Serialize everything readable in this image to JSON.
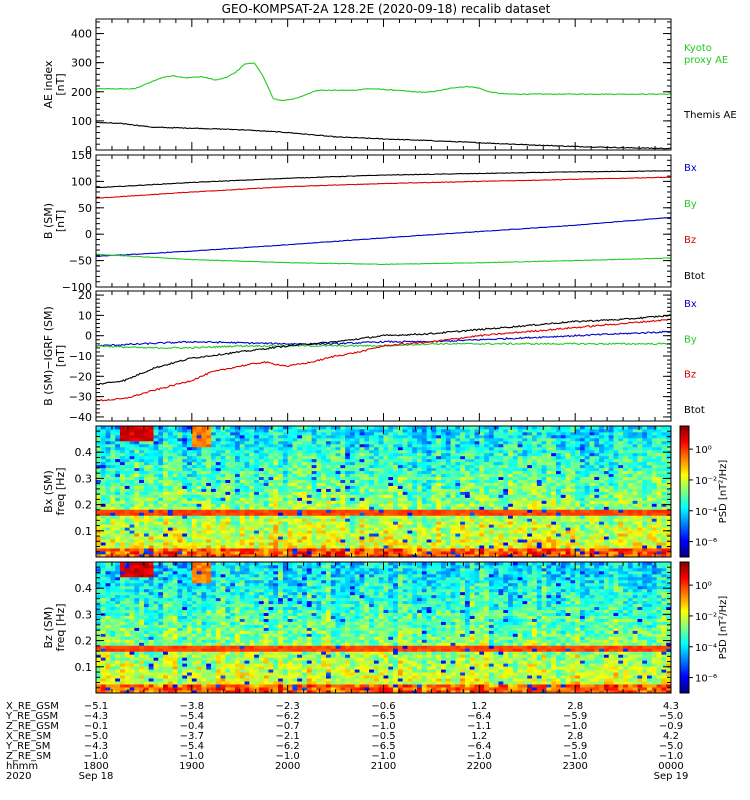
{
  "title": "GEO-KOMPSAT-2A 128.2E (2020-09-18) recalib dataset",
  "colors": {
    "black": "#000000",
    "blue": "#0000cc",
    "green": "#22cc22",
    "red": "#dd0000"
  },
  "chart_data": [
    {
      "id": "ae",
      "type": "line",
      "ylabel_lines": [
        "AE index",
        "[nT]"
      ],
      "ylim": [
        0,
        450
      ],
      "yticks": [
        "0",
        "100",
        "200",
        "300",
        "400"
      ],
      "ytick_values": [
        0,
        100,
        200,
        300,
        400
      ],
      "x_hours": [
        18,
        19,
        20,
        21,
        22,
        23,
        24
      ],
      "series": [
        {
          "name": "Kyoto proxy AE",
          "legend_lines": [
            "Kyoto",
            "proxy AE"
          ],
          "color": "#22cc22",
          "x": [
            18.0,
            18.4,
            18.55,
            18.7,
            18.8,
            18.95,
            19.1,
            19.25,
            19.35,
            19.45,
            19.55,
            19.65,
            19.75,
            19.85,
            19.95,
            20.1,
            20.3,
            20.5,
            20.7,
            20.8,
            20.9,
            21.0,
            21.15,
            21.3,
            21.45,
            21.6,
            21.75,
            21.9,
            22.0,
            22.1,
            22.2,
            22.3,
            22.5,
            23.0,
            23.5,
            24.0
          ],
          "y": [
            210,
            210,
            230,
            250,
            255,
            248,
            252,
            240,
            248,
            265,
            295,
            300,
            250,
            175,
            170,
            178,
            205,
            205,
            205,
            210,
            210,
            208,
            205,
            200,
            198,
            205,
            215,
            218,
            212,
            200,
            195,
            192,
            192,
            192,
            192,
            192
          ]
        },
        {
          "name": "Themis AE",
          "legend_lines": [
            "Themis AE"
          ],
          "color": "#000000",
          "x": [
            18.0,
            18.3,
            18.6,
            19.0,
            19.5,
            20.0,
            20.5,
            21.0,
            21.5,
            22.0,
            22.5,
            23.0,
            23.5,
            24.0
          ],
          "y": [
            95,
            90,
            78,
            75,
            70,
            60,
            45,
            38,
            32,
            25,
            18,
            12,
            8,
            5
          ]
        }
      ]
    },
    {
      "id": "bsm",
      "type": "line",
      "ylabel_lines": [
        "B (SM)",
        "[nT]"
      ],
      "ylim": [
        -100,
        150
      ],
      "yticks": [
        "−100",
        "−50",
        "0",
        "50",
        "100",
        "150"
      ],
      "ytick_values": [
        -100,
        -50,
        0,
        50,
        100,
        150
      ],
      "x_hours": [
        18,
        19,
        20,
        21,
        22,
        23,
        24
      ],
      "series": [
        {
          "name": "Bx",
          "color": "#0000cc",
          "x": [
            18,
            19,
            20,
            21,
            22,
            23,
            24
          ],
          "y": [
            -42,
            -32,
            -20,
            -7,
            5,
            17,
            32
          ]
        },
        {
          "name": "By",
          "color": "#22cc22",
          "x": [
            18,
            19,
            20,
            21,
            22,
            23,
            24
          ],
          "y": [
            -38,
            -48,
            -54,
            -57,
            -54,
            -50,
            -45
          ]
        },
        {
          "name": "Bz",
          "color": "#dd0000",
          "x": [
            18,
            19,
            20,
            21,
            22,
            23,
            24
          ],
          "y": [
            68,
            80,
            90,
            96,
            100,
            104,
            108
          ]
        },
        {
          "name": "Btot",
          "color": "#000000",
          "x": [
            18,
            19,
            20,
            21,
            22,
            23,
            24
          ],
          "y": [
            88,
            98,
            106,
            112,
            115,
            118,
            120
          ]
        }
      ]
    },
    {
      "id": "dbsm",
      "type": "line",
      "ylabel_lines": [
        "B (SM)−IGRF (SM)",
        "[nT]"
      ],
      "ylim": [
        -42,
        22
      ],
      "yticks": [
        "−40",
        "−30",
        "−20",
        "−10",
        "0",
        "10",
        "20"
      ],
      "ytick_values": [
        -40,
        -30,
        -20,
        -10,
        0,
        10,
        20
      ],
      "x_hours": [
        18,
        19,
        20,
        21,
        22,
        23,
        24
      ],
      "series": [
        {
          "name": "Bx",
          "color": "#0000cc",
          "x": [
            18,
            18.5,
            19,
            19.5,
            20,
            20.5,
            21,
            21.5,
            22,
            22.5,
            23,
            23.5,
            24
          ],
          "y": [
            -5,
            -4,
            -3,
            -3.5,
            -4,
            -4,
            -3,
            -3,
            -2,
            -1,
            0,
            1,
            2
          ]
        },
        {
          "name": "By",
          "color": "#22cc22",
          "x": [
            18,
            18.5,
            19,
            19.5,
            20,
            20.5,
            21,
            21.5,
            22,
            22.5,
            23,
            23.5,
            24
          ],
          "y": [
            -5,
            -6,
            -6,
            -5,
            -5,
            -5,
            -5,
            -4,
            -4,
            -4,
            -4,
            -4,
            -4
          ]
        },
        {
          "name": "Bz",
          "color": "#dd0000",
          "x": [
            18,
            18.3,
            18.6,
            19.0,
            19.2,
            19.5,
            19.75,
            20.0,
            20.25,
            20.5,
            20.75,
            21.0,
            21.5,
            22.0,
            22.5,
            23.0,
            23.5,
            24.0
          ],
          "y": [
            -32,
            -31,
            -27,
            -22,
            -18,
            -15,
            -13,
            -15,
            -13,
            -10,
            -8,
            -5,
            -3,
            0,
            2,
            4,
            6,
            8
          ]
        },
        {
          "name": "Btot",
          "color": "#000000",
          "x": [
            18,
            18.3,
            18.6,
            19.0,
            19.5,
            20.0,
            20.5,
            21.0,
            21.5,
            22.0,
            22.5,
            23.0,
            23.5,
            24.0
          ],
          "y": [
            -24,
            -22,
            -16,
            -11,
            -8,
            -5,
            -3,
            0,
            1,
            3,
            5,
            7,
            8,
            10
          ]
        }
      ]
    },
    {
      "id": "bx-spec",
      "type": "heatmap",
      "ylabel_lines": [
        "Bx (SM)",
        "freq [Hz]"
      ],
      "ylim": [
        0,
        0.5
      ],
      "yticks": [
        "0.1",
        "0.2",
        "0.3",
        "0.4"
      ],
      "ytick_values": [
        0.1,
        0.2,
        0.3,
        0.4
      ],
      "colorbar_label": "PSD [nT²/Hz]",
      "colorbar_ticks": [
        "10⁰",
        "10⁻²",
        "10⁻⁴",
        "10⁻⁶"
      ],
      "colorbar_tick_values": [
        0,
        -2,
        -4,
        -6
      ],
      "colorbar_range": [
        -7,
        1.5
      ],
      "features": {
        "line_freq": 0.17,
        "burst_hours": [
          18.5,
          19.1
        ]
      }
    },
    {
      "id": "bz-spec",
      "type": "heatmap",
      "ylabel_lines": [
        "Bz (SM)",
        "freq [Hz]"
      ],
      "ylim": [
        0,
        0.5
      ],
      "yticks": [
        "0.1",
        "0.2",
        "0.3",
        "0.4"
      ],
      "ytick_values": [
        0.1,
        0.2,
        0.3,
        0.4
      ],
      "colorbar_label": "PSD [nT²/Hz]",
      "colorbar_ticks": [
        "10⁰",
        "10⁻²",
        "10⁻⁴",
        "10⁻⁶"
      ],
      "colorbar_tick_values": [
        0,
        -2,
        -4,
        -6
      ],
      "colorbar_range": [
        -7,
        1.5
      ],
      "features": {
        "line_freq": 0.17,
        "burst_hours": [
          18.5,
          19.1
        ]
      }
    }
  ],
  "ephemeris": {
    "row_labels": [
      "X_RE_GSM",
      "Y_RE_GSM",
      "Z_RE_GSM",
      "X_RE_SM",
      "Y_RE_SM",
      "Z_RE_SM",
      "hhmm",
      "2020"
    ],
    "columns": [
      {
        "hour": 18,
        "values": [
          "−5.1",
          "−4.3",
          "−0.1",
          "−5.0",
          "−4.3",
          "−1.0",
          "1800",
          "Sep 18"
        ]
      },
      {
        "hour": 19,
        "values": [
          "−3.8",
          "−5.4",
          "−0.4",
          "−3.7",
          "−5.4",
          "−1.0",
          "1900",
          ""
        ]
      },
      {
        "hour": 20,
        "values": [
          "−2.3",
          "−6.2",
          "−0.7",
          "−2.1",
          "−6.2",
          "−1.0",
          "2000",
          ""
        ]
      },
      {
        "hour": 21,
        "values": [
          "−0.6",
          "−6.5",
          "−1.0",
          "−0.5",
          "−6.5",
          "−1.0",
          "2100",
          ""
        ]
      },
      {
        "hour": 22,
        "values": [
          "1.2",
          "−6.4",
          "−1.1",
          "1.2",
          "−6.4",
          "−1.0",
          "2200",
          ""
        ]
      },
      {
        "hour": 23,
        "values": [
          "2.8",
          "−5.9",
          "−1.0",
          "2.8",
          "−5.9",
          "−1.0",
          "2300",
          ""
        ]
      },
      {
        "hour": 24,
        "values": [
          "4.3",
          "−5.0",
          "−0.9",
          "4.2",
          "−5.0",
          "−1.0",
          "0000",
          "Sep 19"
        ]
      }
    ]
  }
}
